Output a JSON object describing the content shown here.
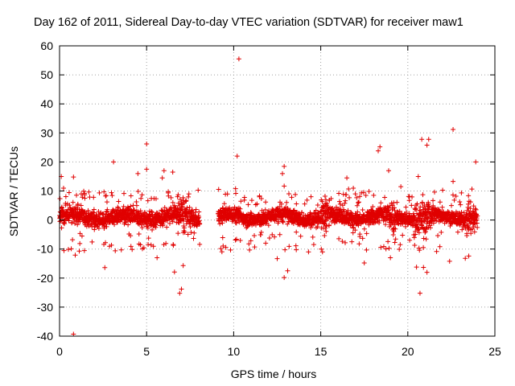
{
  "chart_data": {
    "type": "scatter",
    "title": "Day 162 of 2011, Sidereal Day-to-day VTEC variation (SDTVAR) for receiver maw1",
    "xlabel": "GPS time / hours",
    "ylabel": "SDTVAR / TECUs",
    "xlim": [
      0,
      25
    ],
    "ylim": [
      -40,
      60
    ],
    "xticks": [
      "0",
      "5",
      "10",
      "15",
      "20",
      "25"
    ],
    "yticks": [
      "60",
      "50",
      "40",
      "30",
      "20",
      "10",
      "0",
      "-10",
      "-20",
      "-30",
      "-40"
    ],
    "marker": "+",
    "color": "#e00000",
    "grid": true,
    "segments": [
      {
        "x_start": 0.0,
        "x_end": 8.05,
        "spread": 3.5
      },
      {
        "x_start": 9.1,
        "x_end": 24.0,
        "spread": 3.0
      }
    ],
    "gap": [
      8.05,
      9.1
    ],
    "outliers": [
      {
        "x": 10.3,
        "y": 55.5
      },
      {
        "x": 10.2,
        "y": 22.0
      },
      {
        "x": 22.6,
        "y": 31.2
      },
      {
        "x": 5.0,
        "y": 26.2
      },
      {
        "x": 3.1,
        "y": 20.0
      },
      {
        "x": 5.0,
        "y": 17.5
      },
      {
        "x": 4.5,
        "y": 16.0
      },
      {
        "x": 6.0,
        "y": 17.0
      },
      {
        "x": 6.5,
        "y": 16.5
      },
      {
        "x": 12.9,
        "y": 18.5
      },
      {
        "x": 12.8,
        "y": 16.0
      },
      {
        "x": 18.4,
        "y": 25.2
      },
      {
        "x": 18.3,
        "y": 23.8
      },
      {
        "x": 20.8,
        "y": 27.8
      },
      {
        "x": 21.2,
        "y": 27.8
      },
      {
        "x": 21.1,
        "y": 25.8
      },
      {
        "x": 18.9,
        "y": 17.0
      },
      {
        "x": 23.9,
        "y": 20.0
      },
      {
        "x": 0.1,
        "y": 15.0
      },
      {
        "x": 0.8,
        "y": 14.8
      },
      {
        "x": 16.5,
        "y": 14.5
      },
      {
        "x": 20.6,
        "y": 15.0
      },
      {
        "x": 0.8,
        "y": -39.3
      },
      {
        "x": 2.6,
        "y": -16.4
      },
      {
        "x": 6.6,
        "y": -17.9
      },
      {
        "x": 7.1,
        "y": -15.7
      },
      {
        "x": 7.0,
        "y": -23.8
      },
      {
        "x": 6.9,
        "y": -25.2
      },
      {
        "x": 12.9,
        "y": -19.8
      },
      {
        "x": 13.1,
        "y": -17.5
      },
      {
        "x": 12.5,
        "y": -13.3
      },
      {
        "x": 20.7,
        "y": -25.2
      },
      {
        "x": 21.1,
        "y": -18.0
      },
      {
        "x": 20.9,
        "y": -16.3
      },
      {
        "x": 20.5,
        "y": -16.2
      },
      {
        "x": 22.4,
        "y": -14.2
      },
      {
        "x": 23.3,
        "y": -13.2
      },
      {
        "x": 23.5,
        "y": -12.4
      },
      {
        "x": 17.5,
        "y": -14.8
      },
      {
        "x": 0.9,
        "y": -12.1
      },
      {
        "x": 5.6,
        "y": -13.0
      },
      {
        "x": 19.0,
        "y": -13.0
      },
      {
        "x": 15.1,
        "y": -11.0
      },
      {
        "x": 3.2,
        "y": -10.6
      },
      {
        "x": 5.9,
        "y": 14.5
      },
      {
        "x": 22.6,
        "y": 13.3
      },
      {
        "x": 19.6,
        "y": 11.5
      },
      {
        "x": 12.9,
        "y": 11.7
      }
    ]
  }
}
